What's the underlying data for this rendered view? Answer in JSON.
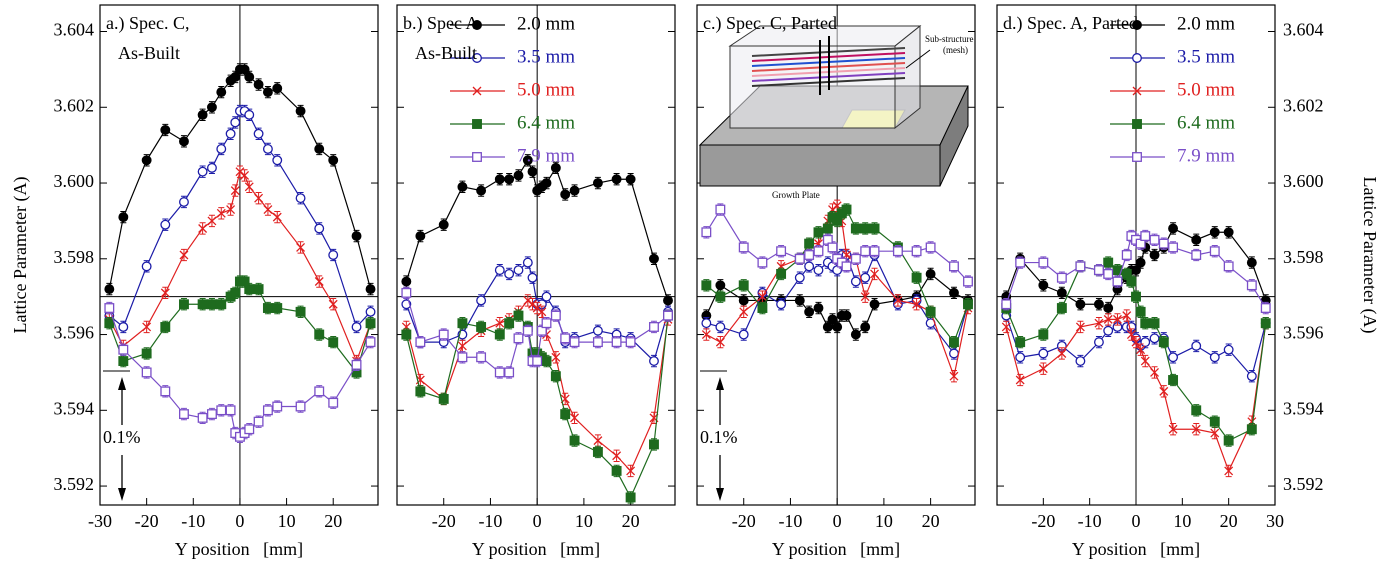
{
  "chart_data": [
    {
      "type": "line",
      "title": [
        "a.) Spec. C,",
        "As-Built"
      ],
      "xlabel": "Y position   [mm]",
      "ylabel": "Lattice Parameter (A)",
      "ytick_label_side": "left",
      "legend": false,
      "annotations": [
        "0.1%"
      ],
      "xlim": [
        -30,
        29.6
      ],
      "xticks": [
        -30,
        -20,
        -10,
        0,
        10,
        20
      ],
      "ylim": [
        3.5915,
        3.6047
      ],
      "yticks": [
        3.592,
        3.594,
        3.596,
        3.598,
        {
          "value": 3.6,
          "label": "3.600"
        },
        3.602,
        3.604
      ],
      "refline": 3.597,
      "vline": 0,
      "yerr": 0.00015,
      "x": [
        -28,
        -25,
        -20,
        -16,
        -12,
        -8,
        -6,
        -4,
        -2,
        -1,
        0,
        1,
        2,
        4,
        6,
        8,
        13,
        17,
        20,
        25,
        28
      ],
      "series": [
        {
          "name": "2.0 mm",
          "color": "#000000",
          "marker": "circle-filled",
          "values": [
            3.5972,
            3.5991,
            3.6006,
            3.6014,
            3.6011,
            3.6018,
            3.602,
            3.6024,
            3.6027,
            3.6028,
            3.603,
            3.603,
            3.6028,
            3.6026,
            3.6024,
            3.6025,
            3.6019,
            3.6009,
            3.6006,
            3.5986,
            3.5972
          ]
        },
        {
          "name": "3.5 mm",
          "color": "#1c1ca8",
          "marker": "circle-open",
          "values": [
            3.5965,
            3.5962,
            3.5978,
            3.5989,
            3.5995,
            3.6003,
            3.6004,
            3.6009,
            3.6013,
            3.6016,
            3.6019,
            3.6019,
            3.6018,
            3.6013,
            3.6009,
            3.6006,
            3.5996,
            3.5988,
            3.5981,
            3.5962,
            3.5966
          ]
        },
        {
          "name": "5.0 mm",
          "color": "#e02020",
          "marker": "cross",
          "values": [
            3.5964,
            3.5957,
            3.5962,
            3.5971,
            3.5981,
            3.5988,
            3.599,
            3.5992,
            3.5993,
            3.5998,
            3.6003,
            3.6002,
            3.5999,
            3.5996,
            3.5993,
            3.5991,
            3.5983,
            3.5974,
            3.5968,
            3.5953,
            3.5963
          ]
        },
        {
          "name": "6.4 mm",
          "color": "#1e6b1e",
          "marker": "square-filled",
          "values": [
            3.5963,
            3.5953,
            3.5955,
            3.5962,
            3.5968,
            3.5968,
            3.5968,
            3.5968,
            3.597,
            3.5971,
            3.5974,
            3.5974,
            3.5972,
            3.5972,
            3.5967,
            3.5967,
            3.5966,
            3.596,
            3.5958,
            3.595,
            3.5963
          ]
        },
        {
          "name": "7.9 mm",
          "color": "#7a4fc8",
          "marker": "square-open",
          "values": [
            3.5967,
            3.5956,
            3.595,
            3.5945,
            3.5939,
            3.5938,
            3.5939,
            3.594,
            3.594,
            3.5934,
            3.5933,
            3.5934,
            3.5935,
            3.5937,
            3.594,
            3.5941,
            3.5941,
            3.5945,
            3.5942,
            3.5952,
            3.5958
          ]
        }
      ]
    },
    {
      "type": "line",
      "title": [
        "b.) Spec A",
        "As-Built"
      ],
      "xlabel": "Y position   [mm]",
      "ytick_label_side": "none",
      "legend": true,
      "legend_corner": "upper right",
      "xlim": [
        -30,
        29.5
      ],
      "xticks": [
        -20,
        -10,
        0,
        10,
        20
      ],
      "ylim": [
        3.5915,
        3.6047
      ],
      "yticks": [
        3.592,
        3.594,
        3.596,
        3.598,
        3.6,
        3.602,
        3.604
      ],
      "refline": 3.597,
      "vline": 0,
      "yerr": 0.00015,
      "x": [
        -28,
        -25,
        -20,
        -16,
        -12,
        -8,
        -6,
        -4,
        -2,
        -1,
        0,
        1,
        2,
        4,
        6,
        8,
        13,
        17,
        20,
        25,
        28
      ],
      "series": [
        {
          "name": "2.0 mm",
          "color": "#000000",
          "marker": "circle-filled",
          "values": [
            3.5974,
            3.5986,
            3.5989,
            3.5999,
            3.5998,
            3.6001,
            3.6001,
            3.6002,
            3.6006,
            3.6003,
            3.5998,
            3.5999,
            3.6,
            3.6004,
            3.5997,
            3.5998,
            3.6,
            3.6001,
            3.6001,
            3.598,
            3.5969
          ]
        },
        {
          "name": "3.5 mm",
          "color": "#1c1ca8",
          "marker": "circle-open",
          "values": [
            3.5968,
            3.5958,
            3.5958,
            3.596,
            3.5969,
            3.5977,
            3.5976,
            3.5977,
            3.5979,
            3.5975,
            3.5968,
            3.5968,
            3.597,
            3.5966,
            3.5958,
            3.5959,
            3.5961,
            3.596,
            3.5959,
            3.5953,
            3.5966
          ]
        },
        {
          "name": "5.0 mm",
          "color": "#e02020",
          "marker": "cross",
          "values": [
            3.5962,
            3.5948,
            3.5943,
            3.5957,
            3.5961,
            3.5963,
            3.5964,
            3.5966,
            3.5969,
            3.5968,
            3.5967,
            3.5966,
            3.596,
            3.5954,
            3.5943,
            3.5938,
            3.5932,
            3.5928,
            3.5924,
            3.5938,
            3.5964
          ]
        },
        {
          "name": "6.4 mm",
          "color": "#1e6b1e",
          "marker": "square-filled",
          "values": [
            3.596,
            3.5945,
            3.5943,
            3.5963,
            3.5962,
            3.596,
            3.5963,
            3.5965,
            3.5962,
            3.5955,
            3.5955,
            3.5954,
            3.5953,
            3.5949,
            3.5939,
            3.5932,
            3.5929,
            3.5924,
            3.5917,
            3.5931,
            3.5965
          ]
        },
        {
          "name": "7.9 mm",
          "color": "#7a4fc8",
          "marker": "square-open",
          "values": [
            3.5971,
            3.5958,
            3.596,
            3.5954,
            3.5954,
            3.595,
            3.595,
            3.5959,
            3.5961,
            3.5953,
            3.5953,
            3.5961,
            3.5963,
            3.5965,
            3.5959,
            3.5958,
            3.5958,
            3.5958,
            3.5958,
            3.5962,
            3.5965
          ]
        }
      ]
    },
    {
      "type": "line",
      "title": [
        "c.) Spec. C, Parted"
      ],
      "xlabel": "Y position   [mm]",
      "ytick_label_side": "none",
      "legend": false,
      "annotations": [
        "0.1%"
      ],
      "inset_labels": [
        "Sub-structure",
        "(mesh)",
        "Growth Plate"
      ],
      "xlim": [
        -30,
        29.5
      ],
      "xticks": [
        -20,
        -10,
        0,
        10,
        20
      ],
      "ylim": [
        3.5915,
        3.6047
      ],
      "yticks": [
        3.592,
        3.594,
        3.596,
        3.598,
        3.6,
        3.602,
        3.604
      ],
      "refline": 3.597,
      "vline": 0,
      "yerr": 0.00015,
      "x": [
        -28,
        -25,
        -20,
        -16,
        -12,
        -8,
        -6,
        -4,
        -2,
        -1,
        0,
        1,
        2,
        4,
        6,
        8,
        13,
        17,
        20,
        25,
        28
      ],
      "series": [
        {
          "name": "2.0 mm",
          "color": "#000000",
          "marker": "circle-filled",
          "values": [
            3.5965,
            3.5973,
            3.5969,
            3.5969,
            3.5969,
            3.5969,
            3.5966,
            3.5967,
            3.5962,
            3.5964,
            3.5962,
            3.5965,
            3.5965,
            3.596,
            3.5962,
            3.5968,
            3.5969,
            3.597,
            3.5976,
            3.5971,
            3.5969
          ]
        },
        {
          "name": "3.5 mm",
          "color": "#1c1ca8",
          "marker": "circle-open",
          "values": [
            3.5963,
            3.5962,
            3.596,
            3.5971,
            3.5968,
            3.5975,
            3.5978,
            3.5977,
            3.5979,
            3.5978,
            3.5977,
            3.5981,
            3.5981,
            3.5974,
            3.5975,
            3.5981,
            3.5968,
            3.5969,
            3.5963,
            3.5955,
            3.5968
          ]
        },
        {
          "name": "5.0 mm",
          "color": "#e02020",
          "marker": "cross",
          "values": [
            3.596,
            3.5958,
            3.5966,
            3.597,
            3.5978,
            3.598,
            3.5984,
            3.5984,
            3.599,
            3.5993,
            3.5994,
            3.599,
            3.5981,
            3.598,
            3.597,
            3.5976,
            3.5969,
            3.5968,
            3.5966,
            3.5949,
            3.5967
          ]
        },
        {
          "name": "6.4 mm",
          "color": "#1e6b1e",
          "marker": "square-filled",
          "values": [
            3.5973,
            3.597,
            3.5973,
            3.5967,
            3.5976,
            3.598,
            3.5984,
            3.5987,
            3.5988,
            3.5991,
            3.599,
            3.5992,
            3.5993,
            3.5988,
            3.5988,
            3.5988,
            3.5983,
            3.5975,
            3.5966,
            3.5958,
            3.5968
          ]
        },
        {
          "name": "7.9 mm",
          "color": "#7a4fc8",
          "marker": "square-open",
          "values": [
            3.5987,
            3.5993,
            3.5983,
            3.5979,
            3.5982,
            3.598,
            3.5981,
            3.5982,
            3.5985,
            3.5983,
            3.598,
            3.5979,
            3.5978,
            3.598,
            3.5982,
            3.5982,
            3.5982,
            3.5982,
            3.5983,
            3.5978,
            3.5974
          ]
        }
      ]
    },
    {
      "type": "line",
      "title": [
        "d.) Spec. A, Parted"
      ],
      "xlabel": "Y position   [mm]",
      "ylabel": "Lattice Parameter (A)",
      "ytick_label_side": "right",
      "legend": true,
      "legend_corner": "upper right",
      "xlim": [
        -30,
        30
      ],
      "xticks": [
        -20,
        -10,
        0,
        10,
        20,
        30
      ],
      "ylim": [
        3.5915,
        3.6047
      ],
      "yticks": [
        3.592,
        3.594,
        3.596,
        3.598,
        {
          "value": 3.6,
          "label": "3.600"
        },
        3.602,
        3.604
      ],
      "refline": 3.597,
      "vline": 0,
      "yerr": 0.00015,
      "x": [
        -28,
        -25,
        -20,
        -16,
        -12,
        -8,
        -6,
        -4,
        -2,
        -1,
        0,
        1,
        2,
        4,
        6,
        8,
        13,
        17,
        20,
        25,
        28
      ],
      "series": [
        {
          "name": "2.0 mm",
          "color": "#000000",
          "marker": "circle-filled",
          "values": [
            3.597,
            3.598,
            3.5973,
            3.5971,
            3.5968,
            3.5968,
            3.5967,
            3.5972,
            3.5975,
            3.5977,
            3.5977,
            3.5979,
            3.5983,
            3.5981,
            3.5983,
            3.5988,
            3.5985,
            3.5987,
            3.5987,
            3.5979,
            3.5969
          ]
        },
        {
          "name": "3.5 mm",
          "color": "#1c1ca8",
          "marker": "circle-open",
          "values": [
            3.5965,
            3.5954,
            3.5955,
            3.5957,
            3.5953,
            3.5958,
            3.5961,
            3.5962,
            3.5962,
            3.5962,
            3.5959,
            3.5957,
            3.5958,
            3.5959,
            3.5959,
            3.5954,
            3.5957,
            3.5954,
            3.5956,
            3.5949,
            3.5963
          ]
        },
        {
          "name": "5.0 mm",
          "color": "#e02020",
          "marker": "cross",
          "values": [
            3.5962,
            3.5948,
            3.5951,
            3.5955,
            3.5962,
            3.5963,
            3.5964,
            3.5964,
            3.5965,
            3.596,
            3.5958,
            3.5956,
            3.5953,
            3.595,
            3.5945,
            3.5935,
            3.5935,
            3.5934,
            3.5924,
            3.5937,
            3.5963
          ]
        },
        {
          "name": "6.4 mm",
          "color": "#1e6b1e",
          "marker": "square-filled",
          "values": [
            3.5967,
            3.5958,
            3.596,
            3.5967,
            3.5978,
            3.5977,
            3.5979,
            3.5977,
            3.5976,
            3.5974,
            3.597,
            3.5966,
            3.5963,
            3.5963,
            3.5958,
            3.5948,
            3.594,
            3.5937,
            3.5932,
            3.5935,
            3.5963
          ]
        },
        {
          "name": "7.9 mm",
          "color": "#7a4fc8",
          "marker": "square-open",
          "values": [
            3.5968,
            3.5979,
            3.5979,
            3.5975,
            3.5978,
            3.5977,
            3.5976,
            3.5974,
            3.5981,
            3.5986,
            3.5985,
            3.5984,
            3.5986,
            3.5985,
            3.5984,
            3.5983,
            3.5981,
            3.5982,
            3.5978,
            3.5973,
            3.5967
          ]
        }
      ]
    }
  ]
}
